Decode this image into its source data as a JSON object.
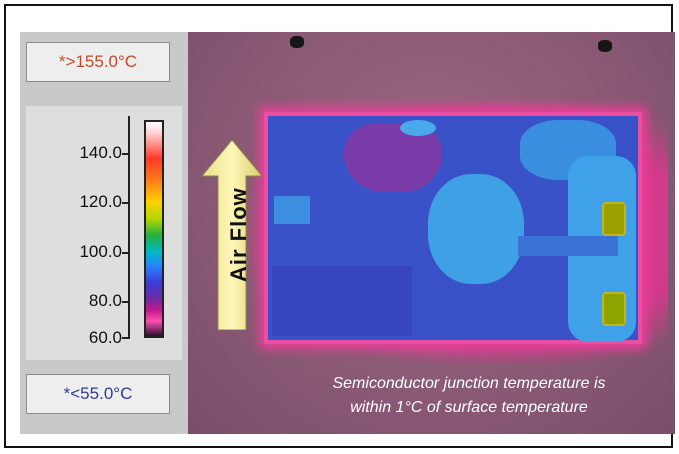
{
  "legend": {
    "max_label": "*>155.0°C",
    "min_label": "*<55.0°C",
    "scale_ticks": [
      "140.0",
      "120.0",
      "100.0",
      "80.0",
      "60.0"
    ]
  },
  "thermal_image": {
    "airflow_label": "Air Flow",
    "caption_line1": "Semiconductor junction temperature is",
    "caption_line2": "within 1°C of surface temperature"
  },
  "colors": {
    "max_label_color": "#c24a2a",
    "min_label_color": "#2b3d8e",
    "board_base": "#3a52c8",
    "board_edge": "#e94ea3",
    "hotspot": "#9aa000"
  }
}
